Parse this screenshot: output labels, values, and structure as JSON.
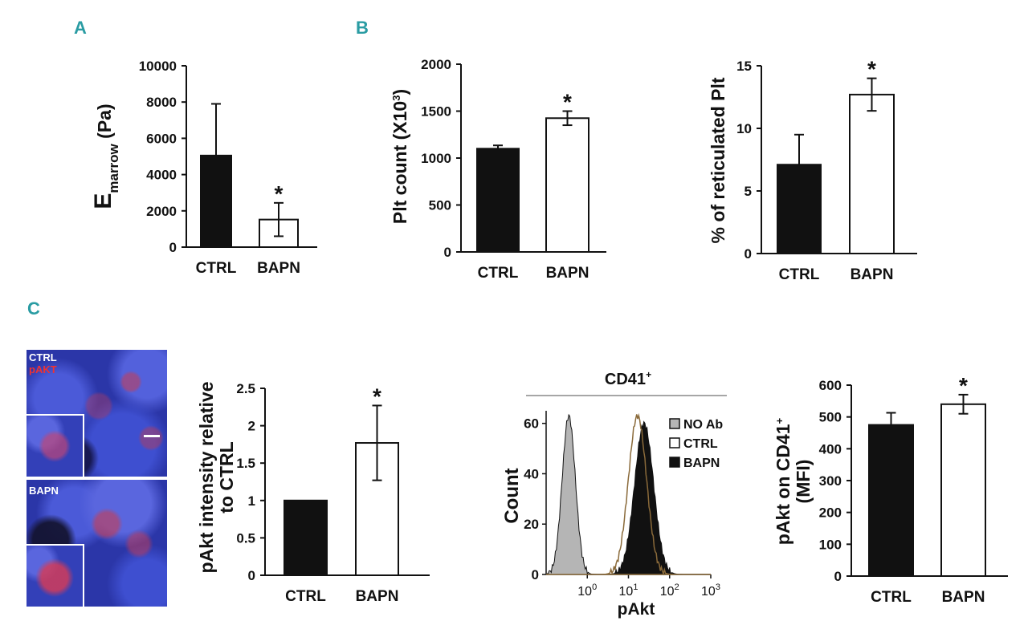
{
  "panels": {
    "a": "A",
    "b": "B",
    "c": "C"
  },
  "colors": {
    "accent": "#2a9ca3",
    "bar_ctrl": "#111111",
    "bar_bapn": "#ffffff",
    "histo_noab": "#b5b5b5"
  },
  "micrograph": {
    "top_label_1": "CTRL",
    "top_label_2": "pAKT",
    "bottom_label": "BAPN"
  },
  "star": "*",
  "chart_data": [
    {
      "id": "emarrow",
      "type": "bar",
      "ylabel_main": "E",
      "ylabel_sub": "marrow",
      "ylabel_unit": " (Pa)",
      "categories": [
        "CTRL",
        "BAPN"
      ],
      "values": [
        5050,
        1520
      ],
      "errors": [
        2850,
        920
      ],
      "ylim": [
        0,
        10000
      ],
      "yticks": [
        0,
        2000,
        4000,
        6000,
        8000,
        10000
      ],
      "yticklabels": [
        "0",
        "2000",
        "4000",
        "6000",
        "8000",
        "10000"
      ],
      "significance": [
        false,
        true
      ]
    },
    {
      "id": "pltcount",
      "type": "bar",
      "ylabel_main": "Plt count (X10",
      "ylabel_sup": "3",
      "ylabel_end": ")",
      "categories": [
        "CTRL",
        "BAPN"
      ],
      "values": [
        1100,
        1425
      ],
      "errors": [
        35,
        75
      ],
      "ylim": [
        0,
        2000
      ],
      "yticks": [
        0,
        500,
        1000,
        1500,
        2000
      ],
      "yticklabels": [
        "0",
        "500",
        "1000",
        "1500",
        "2000"
      ],
      "significance": [
        false,
        true
      ]
    },
    {
      "id": "reticulated",
      "type": "bar",
      "ylabel_main": "% of reticulated Plt",
      "categories": [
        "CTRL",
        "BAPN"
      ],
      "values": [
        7.1,
        12.7
      ],
      "errors": [
        2.4,
        1.3
      ],
      "ylim": [
        0,
        15
      ],
      "yticks": [
        0,
        5,
        10,
        15
      ],
      "yticklabels": [
        "0",
        "5",
        "10",
        "15"
      ],
      "significance": [
        false,
        true
      ]
    },
    {
      "id": "pakt_intensity",
      "type": "bar",
      "ylabel_line1": "pAkt intensity relative",
      "ylabel_line2": "to CTRL",
      "categories": [
        "CTRL",
        "BAPN"
      ],
      "values": [
        1.0,
        1.77
      ],
      "errors": [
        0,
        0.5
      ],
      "ylim": [
        0,
        2.5
      ],
      "yticks": [
        0,
        0.5,
        1,
        1.5,
        2,
        2.5
      ],
      "yticklabels": [
        "0",
        "0.5",
        "1",
        "1.5",
        "2",
        "2.5"
      ],
      "significance": [
        false,
        true
      ]
    },
    {
      "id": "histogram",
      "type": "area",
      "title_main": "CD41",
      "title_sup": "+",
      "xlabel": "pAkt",
      "ylabel": "Count",
      "xscale": "log",
      "xlim": [
        0.1,
        1000
      ],
      "xticks": [
        1,
        10,
        100,
        1000
      ],
      "xticklabels": [
        {
          "base": "10",
          "exp": "0"
        },
        {
          "base": "10",
          "exp": "1"
        },
        {
          "base": "10",
          "exp": "2"
        },
        {
          "base": "10",
          "exp": "3"
        }
      ],
      "ylim": [
        0,
        65
      ],
      "yticks": [
        0,
        20,
        40,
        60
      ],
      "yticklabels": [
        "0",
        "20",
        "40",
        "60"
      ],
      "series": [
        {
          "name": "NO Ab",
          "center_log": -0.45,
          "sigma": 0.16,
          "peak": 63,
          "fill": "#b5b5b5"
        },
        {
          "name": "CTRL",
          "center_log": 1.22,
          "sigma": 0.22,
          "peak": 63,
          "fill": "none"
        },
        {
          "name": "BAPN",
          "center_log": 1.38,
          "sigma": 0.23,
          "peak": 60,
          "fill": "#111111"
        }
      ],
      "legend_position": "top-right"
    },
    {
      "id": "pakt_mfi",
      "type": "bar",
      "ylabel_line1": "pAkt on CD41",
      "ylabel_sup": "+",
      "ylabel_line2": "(MFI)",
      "categories": [
        "CTRL",
        "BAPN"
      ],
      "values": [
        475,
        540
      ],
      "errors": [
        38,
        30
      ],
      "ylim": [
        0,
        600
      ],
      "yticks": [
        0,
        100,
        200,
        300,
        400,
        500,
        600
      ],
      "yticklabels": [
        "0",
        "100",
        "200",
        "300",
        "400",
        "500",
        "600"
      ],
      "significance": [
        false,
        true
      ]
    }
  ]
}
